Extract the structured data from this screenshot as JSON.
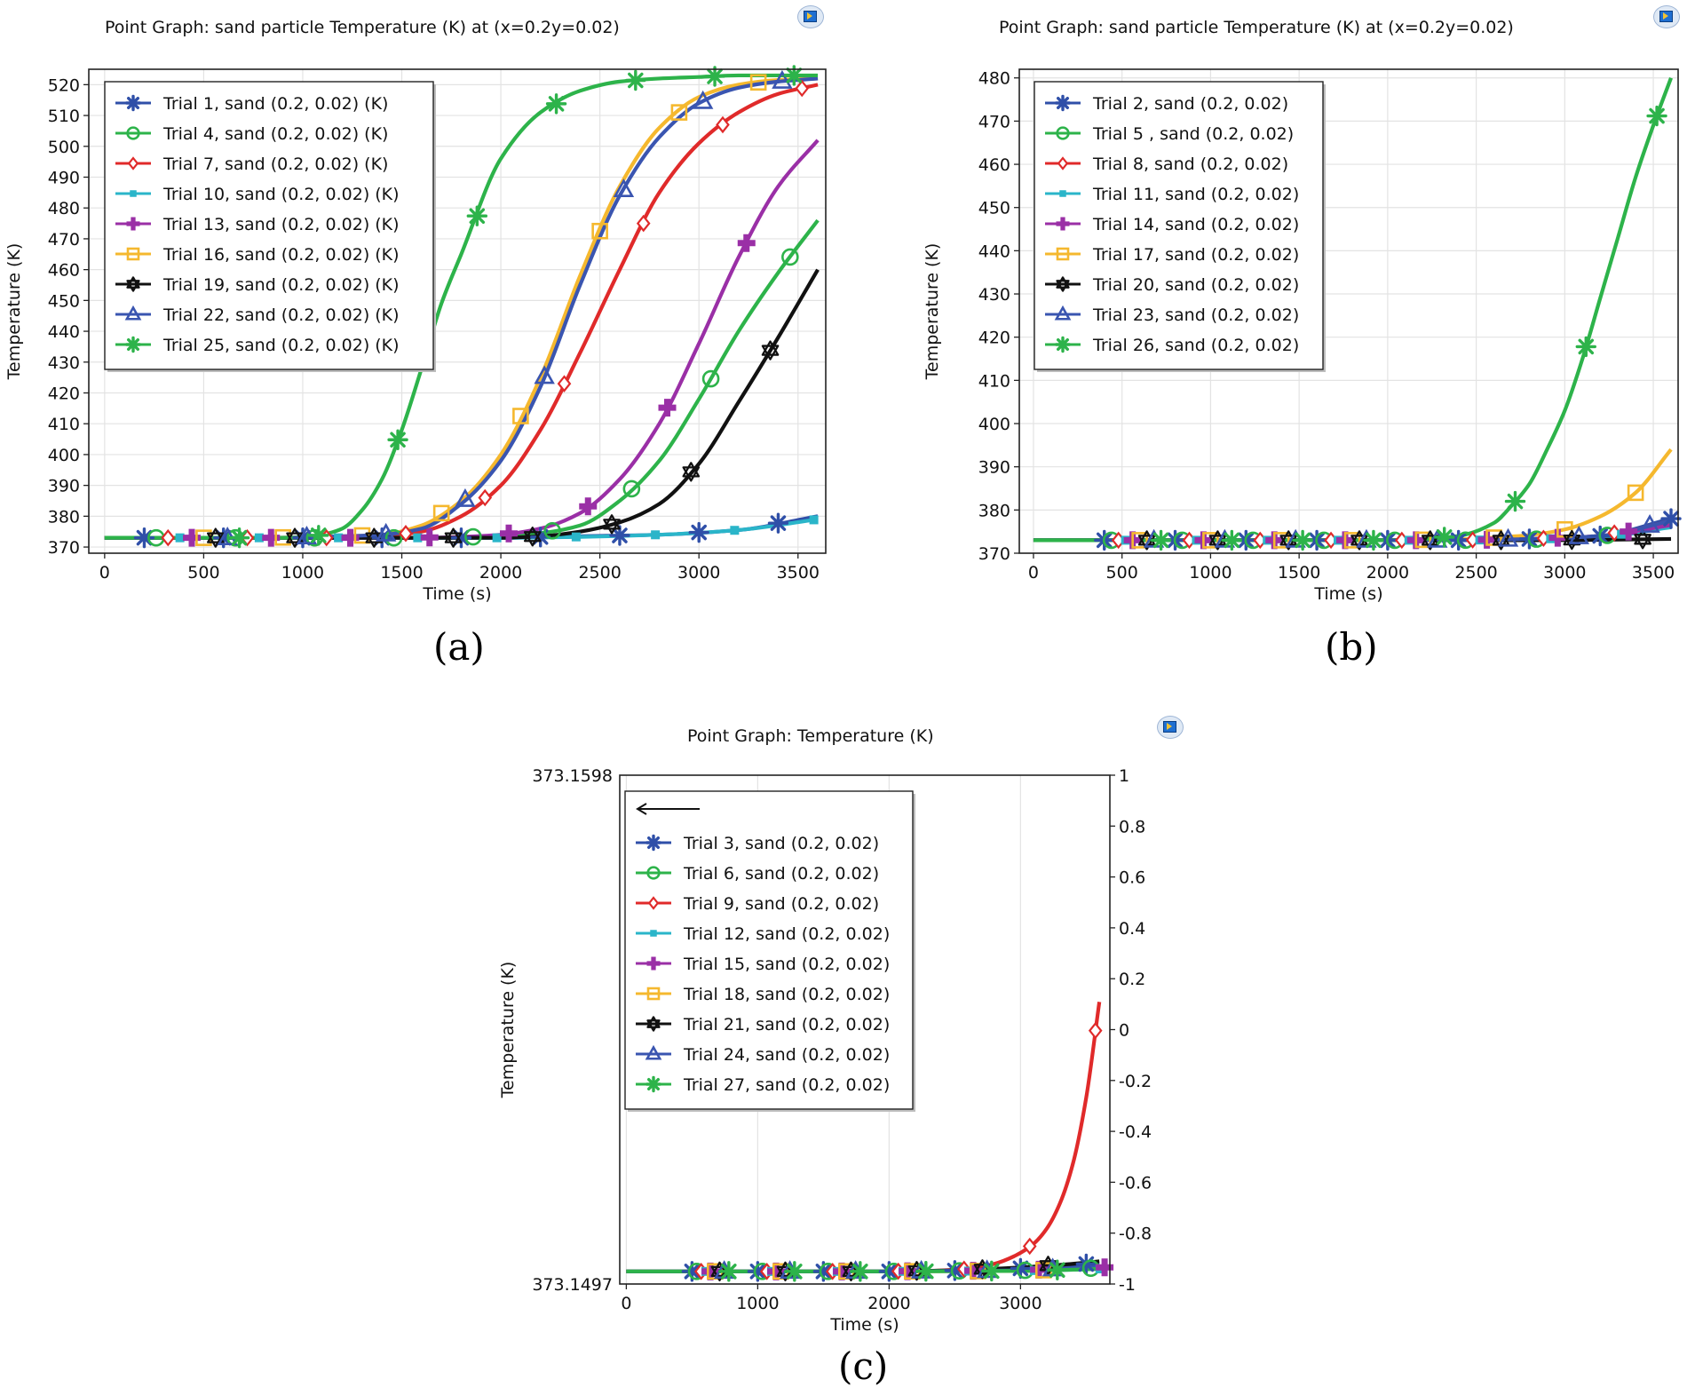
{
  "chart_data": [
    {
      "type": "line",
      "panel": "a",
      "title": "Point Graph: sand particle Temperature (K) at (x=0.2y=0.02)",
      "caption": "(a)",
      "xlabel": "Time (s)",
      "ylabel": "Temperature (K)",
      "xlim": [
        -80,
        3640
      ],
      "ylim": [
        368,
        525
      ],
      "xticks": [
        0,
        500,
        1000,
        1500,
        2000,
        2500,
        3000,
        3500
      ],
      "yticks": [
        370,
        380,
        390,
        400,
        410,
        420,
        430,
        440,
        450,
        460,
        470,
        480,
        490,
        500,
        510,
        520
      ],
      "legend_position": "top-left",
      "series": [
        {
          "name": "Trial 1, sand (0.2, 0.02) (K)",
          "color": "#2f4fa8",
          "marker": "asterisk",
          "x": [
            0,
            400,
            800,
            1200,
            1600,
            2000,
            2400,
            2800,
            3200,
            3600
          ],
          "y": [
            373,
            373,
            373,
            373,
            373,
            373,
            373.5,
            374,
            375.5,
            380
          ]
        },
        {
          "name": "Trial 4, sand  (0.2, 0.02) (K)",
          "color": "#2db34a",
          "marker": "circle",
          "x": [
            0,
            400,
            800,
            1200,
            1600,
            2000,
            2200,
            2400,
            2600,
            2800,
            3000,
            3200,
            3400,
            3600
          ],
          "y": [
            373,
            373,
            373,
            373,
            373,
            373.5,
            374.5,
            377,
            385,
            398,
            418,
            440,
            459,
            476
          ]
        },
        {
          "name": "Trial 7, sand (0.2, 0.02) (K)",
          "color": "#e02a2a",
          "marker": "diamond",
          "x": [
            0,
            400,
            800,
            1200,
            1400,
            1600,
            1800,
            2000,
            2200,
            2400,
            2600,
            2800,
            3000,
            3200,
            3400,
            3600
          ],
          "y": [
            373,
            373,
            373,
            373,
            373.5,
            375,
            380,
            390,
            408,
            433,
            460,
            485,
            501,
            511,
            517,
            520
          ]
        },
        {
          "name": "Trial 10, sand (0.2, 0.02) (K)",
          "color": "#2ab5c9",
          "marker": "square-filled",
          "x": [
            0,
            400,
            800,
            1200,
            1600,
            2000,
            2400,
            2800,
            3200,
            3600
          ],
          "y": [
            373,
            373,
            373,
            373,
            373,
            373,
            373.3,
            374,
            375.5,
            379
          ]
        },
        {
          "name": "Trial 13, sand  (0.2, 0.02) (K)",
          "color": "#9a2fa6",
          "marker": "plus-filled",
          "x": [
            0,
            400,
            800,
            1200,
            1600,
            2000,
            2200,
            2400,
            2600,
            2800,
            3000,
            3200,
            3400,
            3600
          ],
          "y": [
            373,
            373,
            373,
            373,
            373,
            374,
            376,
            381,
            392,
            410,
            436,
            464,
            487,
            502
          ]
        },
        {
          "name": "Trial 16, sand  (0.2, 0.02) (K)",
          "color": "#f5b82e",
          "marker": "square",
          "x": [
            0,
            400,
            800,
            1200,
            1400,
            1600,
            1800,
            2000,
            2200,
            2400,
            2600,
            2800,
            3000,
            3200,
            3400,
            3600
          ],
          "y": [
            373,
            373,
            373,
            373.5,
            374,
            377,
            385,
            400,
            425,
            458,
            487,
            506,
            516,
            520,
            521.5,
            522
          ]
        },
        {
          "name": "Trial 19, sand  (0.2, 0.02) (K)",
          "color": "#111111",
          "marker": "star",
          "x": [
            0,
            400,
            800,
            1200,
            1600,
            2000,
            2200,
            2400,
            2600,
            2800,
            3000,
            3200,
            3400,
            3600
          ],
          "y": [
            373,
            373,
            373,
            373,
            373,
            373,
            373.5,
            375,
            378,
            384,
            397,
            417,
            438,
            460
          ]
        },
        {
          "name": "Trial 22, sand  (0.2, 0.02) (K)",
          "color": "#3a55b0",
          "marker": "triangle",
          "x": [
            0,
            400,
            800,
            1200,
            1400,
            1600,
            1800,
            2000,
            2200,
            2400,
            2600,
            2800,
            3000,
            3200,
            3400,
            3600
          ],
          "y": [
            373,
            373,
            373,
            373.5,
            374,
            376,
            384,
            398,
            422,
            455,
            484,
            503,
            514,
            519,
            521,
            522
          ]
        },
        {
          "name": "Trial 25, sand (0.2, 0.02) (K)",
          "color": "#2db34a",
          "marker": "asterisk",
          "x": [
            0,
            400,
            800,
            1000,
            1100,
            1200,
            1300,
            1400,
            1500,
            1600,
            1700,
            1800,
            2000,
            2200,
            2400,
            2600,
            2800,
            3000,
            3200,
            3400,
            3600
          ],
          "y": [
            373,
            373,
            373,
            373,
            374,
            376,
            382,
            392,
            408,
            428,
            449,
            465,
            496,
            511,
            518,
            521,
            522,
            522.5,
            523,
            523,
            523
          ]
        }
      ]
    },
    {
      "type": "line",
      "panel": "b",
      "title": "Point Graph: sand particle Temperature (K) at (x=0.2y=0.02)",
      "caption": "(b)",
      "xlabel": "Time (s)",
      "ylabel": "Temperature (K)",
      "xlim": [
        -80,
        3640
      ],
      "ylim": [
        370,
        482
      ],
      "xticks": [
        0,
        500,
        1000,
        1500,
        2000,
        2500,
        3000,
        3500
      ],
      "yticks": [
        370,
        380,
        390,
        400,
        410,
        420,
        430,
        440,
        450,
        460,
        470,
        480
      ],
      "legend_position": "top-left",
      "series": [
        {
          "name": "Trial 2, sand (0.2, 0.02)",
          "color": "#2f4fa8",
          "marker": "asterisk",
          "x": [
            0,
            400,
            800,
            1200,
            1600,
            2000,
            2400,
            2800,
            3200,
            3600
          ],
          "y": [
            373,
            373,
            373,
            373,
            373,
            373,
            373,
            373.3,
            374,
            378
          ]
        },
        {
          "name": "Trial 5 , sand (0.2, 0.02)",
          "color": "#2db34a",
          "marker": "circle",
          "x": [
            0,
            400,
            800,
            1200,
            1600,
            2000,
            2400,
            2800,
            3200,
            3600
          ],
          "y": [
            373,
            373,
            373,
            373,
            373,
            373,
            373,
            373.2,
            373.8,
            377
          ]
        },
        {
          "name": "Trial 8, sand (0.2, 0.02)",
          "color": "#e02a2a",
          "marker": "diamond",
          "x": [
            0,
            400,
            800,
            1200,
            1600,
            2000,
            2400,
            2800,
            3200,
            3600
          ],
          "y": [
            373,
            373,
            373,
            373,
            373,
            373,
            373,
            373.3,
            374,
            377.5
          ]
        },
        {
          "name": "Trial 11, sand (0.2, 0.02)",
          "color": "#2ab5c9",
          "marker": "square-filled",
          "x": [
            0,
            400,
            800,
            1200,
            1600,
            2000,
            2400,
            2800,
            3200,
            3600
          ],
          "y": [
            373,
            373,
            373,
            373,
            373,
            373,
            373,
            373.2,
            373.7,
            376
          ]
        },
        {
          "name": "Trial 14, sand (0.2, 0.02)",
          "color": "#9a2fa6",
          "marker": "plus-filled",
          "x": [
            0,
            400,
            800,
            1200,
            1600,
            2000,
            2400,
            2800,
            3200,
            3600
          ],
          "y": [
            373,
            373,
            373,
            373,
            373,
            373,
            373,
            373.3,
            374,
            376.5
          ]
        },
        {
          "name": "Trial 17, sand (0.2, 0.02)",
          "color": "#f5b82e",
          "marker": "square",
          "x": [
            0,
            400,
            800,
            1200,
            1600,
            2000,
            2400,
            2600,
            2800,
            3000,
            3200,
            3400,
            3600
          ],
          "y": [
            373,
            373,
            373,
            373,
            373,
            373,
            373.2,
            373.6,
            374.2,
            375.5,
            378.5,
            384,
            394
          ]
        },
        {
          "name": "Trial 20, sand (0.2, 0.02)",
          "color": "#111111",
          "marker": "star",
          "x": [
            0,
            400,
            800,
            1200,
            1600,
            2000,
            2400,
            2800,
            3200,
            3600
          ],
          "y": [
            373,
            373,
            373,
            373,
            373,
            373,
            373,
            373,
            373.1,
            373.3
          ]
        },
        {
          "name": "Trial 23, sand (0.2, 0.02)",
          "color": "#3a55b0",
          "marker": "triangle",
          "x": [
            0,
            400,
            800,
            1200,
            1600,
            2000,
            2400,
            2800,
            3200,
            3600
          ],
          "y": [
            373,
            373,
            373,
            373,
            373,
            373,
            373,
            373.3,
            374,
            377.5
          ]
        },
        {
          "name": "Trial 26, sand (0.2, 0.02)",
          "color": "#2db34a",
          "marker": "asterisk",
          "x": [
            0,
            400,
            800,
            1200,
            1600,
            2000,
            2200,
            2400,
            2600,
            2700,
            2800,
            2900,
            3000,
            3100,
            3200,
            3300,
            3400,
            3500,
            3600
          ],
          "y": [
            373,
            373,
            373,
            373,
            373,
            373,
            373.3,
            374,
            377,
            381,
            386,
            394,
            403,
            415,
            429,
            443,
            457,
            469,
            480
          ]
        }
      ]
    },
    {
      "type": "line",
      "panel": "c",
      "title": "Point Graph: Temperature (K)",
      "caption": "(c)",
      "xlabel": "Time (s)",
      "ylabel": "Temperature (K)",
      "xlim": [
        -50,
        3680
      ],
      "ylim": [
        373.1497,
        373.1598
      ],
      "y_left_tick_labels": [
        "373.1598",
        "373.1497"
      ],
      "xticks": [
        0,
        1000,
        2000,
        3000
      ],
      "y_right_ticks": [
        -1,
        -0.8,
        -0.6,
        -0.4,
        -0.2,
        0,
        0.2,
        0.4,
        0.6,
        0.8,
        1
      ],
      "y_right_tick_labels": [
        "-1",
        "-0.8",
        "-0.6",
        "-0.4",
        "-0.2",
        "0",
        "0.2",
        "0.4",
        "0.6",
        "0.8",
        "1"
      ],
      "legend_position": "top-left",
      "series": [
        {
          "name": "Trial 3, sand (0.2, 0.02)",
          "color": "#2f4fa8",
          "marker": "asterisk",
          "x": [
            0,
            1000,
            2000,
            2600,
            3000,
            3300,
            3600
          ],
          "y": [
            373.14995,
            373.14995,
            373.14995,
            373.14997,
            373.15001,
            373.15005,
            373.15012
          ]
        },
        {
          "name": "Trial 6, sand (0.2, 0.02)",
          "color": "#2db34a",
          "marker": "circle",
          "x": [
            0,
            1000,
            2000,
            3000,
            3600
          ],
          "y": [
            373.14995,
            373.14995,
            373.14995,
            373.14997,
            373.15002
          ]
        },
        {
          "name": "Trial 9, sand (0.2, 0.02)",
          "color": "#e02a2a",
          "marker": "diamond",
          "x": [
            0,
            500,
            1000,
            1500,
            2000,
            2400,
            2600,
            2800,
            2950,
            3100,
            3200,
            3300,
            3400,
            3500,
            3600
          ],
          "y": [
            373.14995,
            373.14995,
            373.14995,
            373.14995,
            373.14995,
            373.14997,
            373.15,
            373.1501,
            373.15025,
            373.1505,
            373.1508,
            373.1513,
            373.1521,
            373.1534,
            373.1553
          ]
        },
        {
          "name": "Trial 12, sand (0.2, 0.02)",
          "color": "#2ab5c9",
          "marker": "square-filled",
          "x": [
            0,
            1000,
            2000,
            3000,
            3600
          ],
          "y": [
            373.14995,
            373.14995,
            373.14995,
            373.14996,
            373.15
          ]
        },
        {
          "name": "Trial 15, sand (0.2, 0.02)",
          "color": "#9a2fa6",
          "marker": "plus-filled",
          "x": [
            0,
            1000,
            2000,
            3000,
            3600
          ],
          "y": [
            373.14995,
            373.14995,
            373.14995,
            373.14997,
            373.15003
          ]
        },
        {
          "name": "Trial 18, sand (0.2, 0.02)",
          "color": "#f5b82e",
          "marker": "square",
          "x": [
            0,
            1000,
            2000,
            3000,
            3600
          ],
          "y": [
            373.14995,
            373.14995,
            373.14995,
            373.14996,
            373.15001
          ]
        },
        {
          "name": "Trial 21, sand (0.2, 0.02)",
          "color": "#111111",
          "marker": "star",
          "x": [
            0,
            1000,
            2000,
            2600,
            3000,
            3300,
            3600
          ],
          "y": [
            373.14995,
            373.14995,
            373.14995,
            373.14998,
            373.15003,
            373.15008,
            373.15015
          ]
        },
        {
          "name": "Trial 24, sand (0.2, 0.02)",
          "color": "#3a55b0",
          "marker": "triangle",
          "x": [
            0,
            1000,
            2000,
            3000,
            3600
          ],
          "y": [
            373.14995,
            373.14995,
            373.14995,
            373.14997,
            373.15004
          ]
        },
        {
          "name": "Trial 27, sand (0.2, 0.02)",
          "color": "#2db34a",
          "marker": "asterisk",
          "x": [
            0,
            1000,
            2000,
            3000,
            3600
          ],
          "y": [
            373.14995,
            373.14995,
            373.14995,
            373.14996,
            373.15
          ]
        }
      ]
    }
  ]
}
